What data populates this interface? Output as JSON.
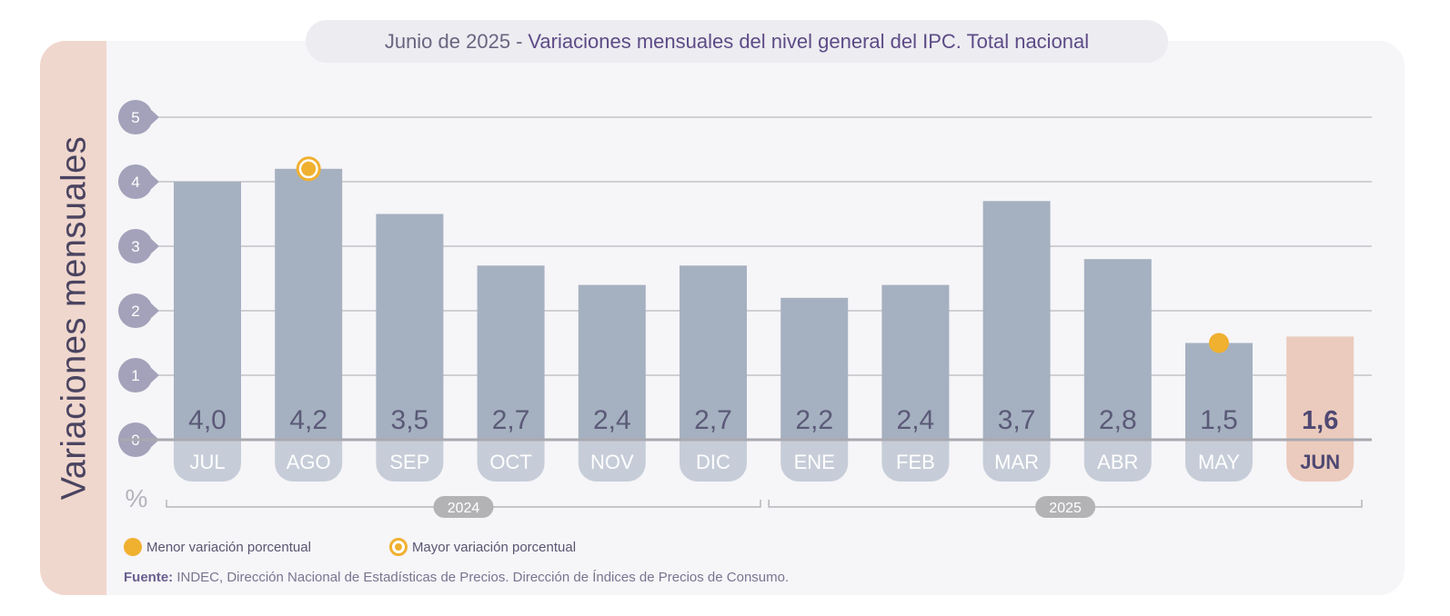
{
  "title": {
    "date": "Junio de 2025",
    "separator": "-",
    "main": "Variaciones mensuales del nivel general del IPC. Total nacional"
  },
  "side_label": "Variaciones mensuales",
  "unit": "%",
  "legend": {
    "min_label": "Menor variación porcentual",
    "max_label": "Mayor variación porcentual"
  },
  "source": {
    "label": "Fuente:",
    "text": "INDEC, Dirección Nacional de Estadísticas de Precios. Dirección de Índices de Precios de Consumo."
  },
  "colors": {
    "bar": "#a5b1c0",
    "highlight_bar": "#ebcbbd",
    "marker": "#f0b030",
    "month_pill": "#c6cdd8",
    "axis_pill": "#a3a2ba",
    "year_pill": "#b3b3b6"
  },
  "chart_data": {
    "type": "bar",
    "categories": [
      "JUL",
      "AGO",
      "SEP",
      "OCT",
      "NOV",
      "DIC",
      "ENE",
      "FEB",
      "MAR",
      "ABR",
      "MAY",
      "JUN"
    ],
    "values": [
      4.0,
      4.2,
      3.5,
      2.7,
      2.4,
      2.7,
      2.2,
      2.4,
      3.7,
      2.8,
      1.5,
      1.6
    ],
    "value_labels": [
      "4,0",
      "4,2",
      "3,5",
      "2,7",
      "2,4",
      "2,7",
      "2,2",
      "2,4",
      "3,7",
      "2,8",
      "1,5",
      "1,6"
    ],
    "highlight": "JUN",
    "max_marker": "AGO",
    "min_marker": "MAY",
    "ylim": [
      0,
      5
    ],
    "yticks": [
      0,
      1,
      2,
      3,
      4,
      5
    ],
    "ylabel": "Variaciones mensuales",
    "years": [
      {
        "label": "2024",
        "from": "JUL",
        "to": "DIC"
      },
      {
        "label": "2025",
        "from": "ENE",
        "to": "JUN"
      }
    ],
    "grid": true
  }
}
